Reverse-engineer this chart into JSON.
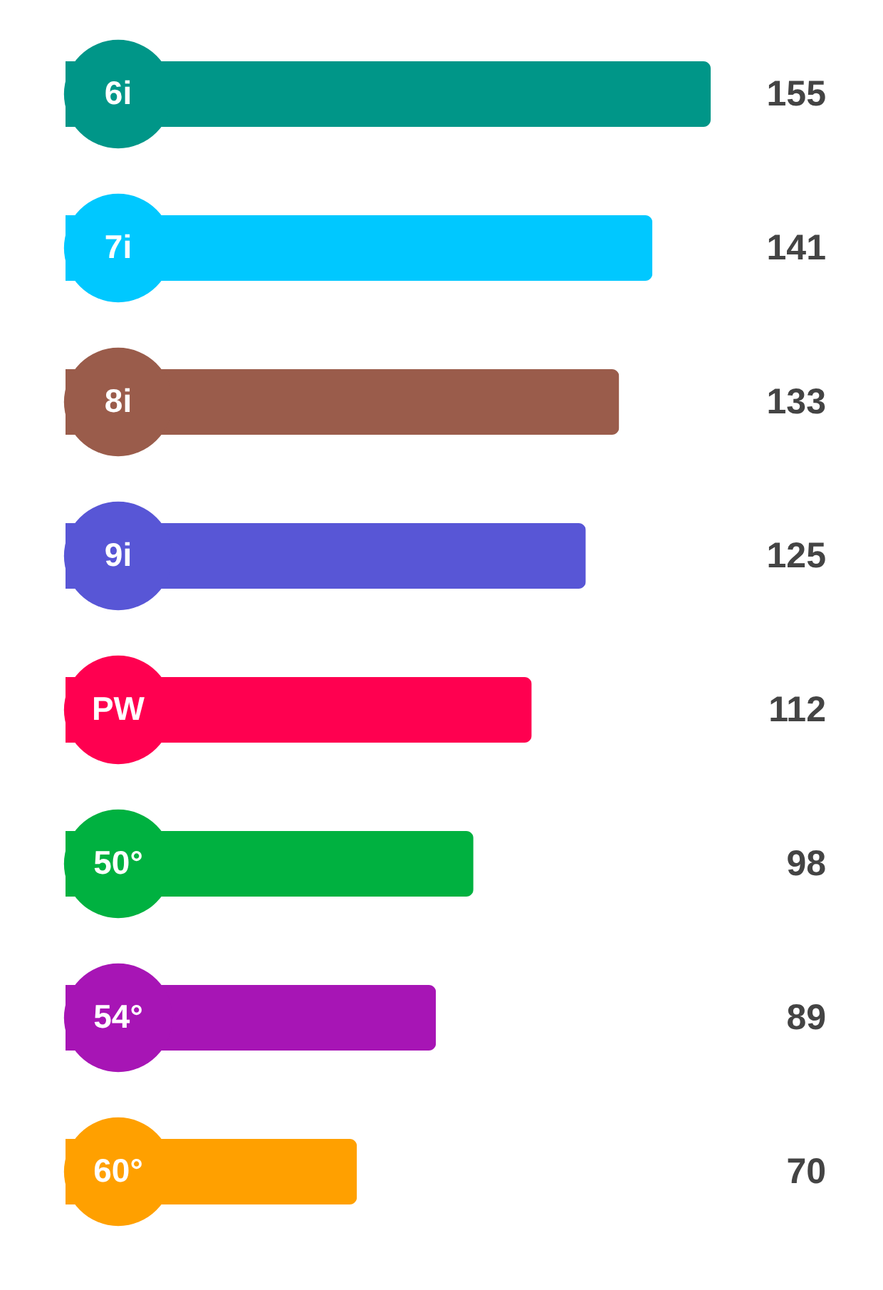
{
  "chart_data": {
    "type": "bar",
    "orientation": "horizontal",
    "categories": [
      "6i",
      "7i",
      "8i",
      "9i",
      "PW",
      "50°",
      "54°",
      "60°"
    ],
    "values": [
      155,
      141,
      133,
      125,
      112,
      98,
      89,
      70
    ],
    "colors": [
      "#009688",
      "#00c8ff",
      "#9a5c4b",
      "#5856d6",
      "#ff0050",
      "#00b140",
      "#a715b5",
      "#ffa000"
    ],
    "data_labels": true,
    "tick_labels": "y"
  }
}
